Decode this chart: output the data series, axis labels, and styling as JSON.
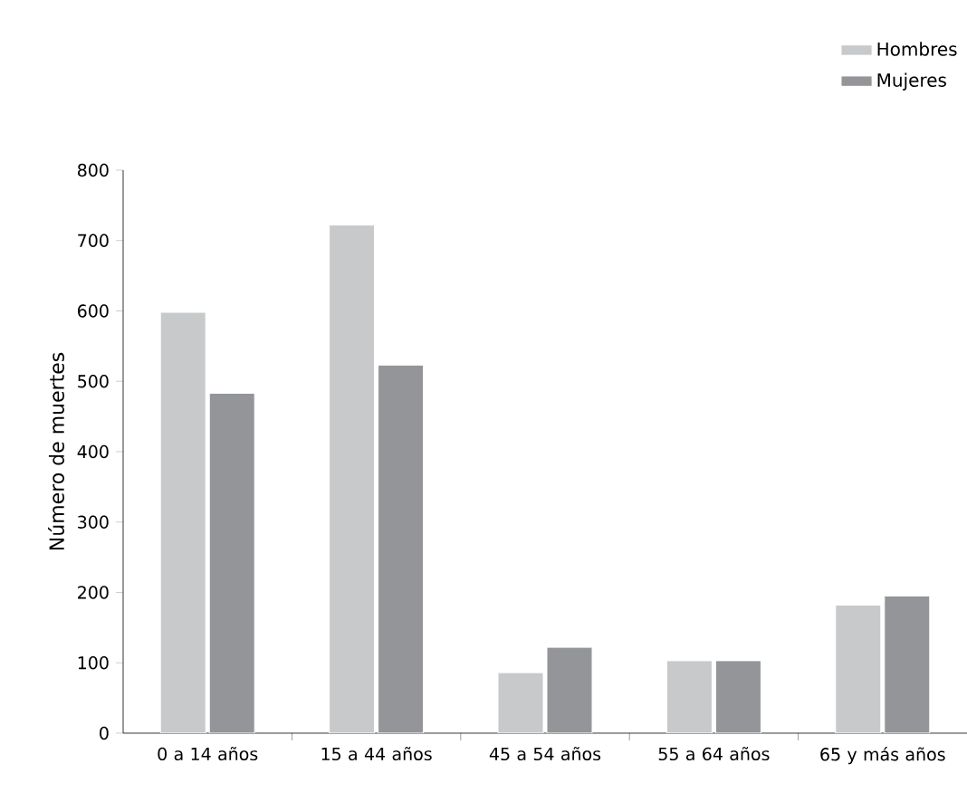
{
  "chart_data": {
    "type": "bar",
    "ylabel": "Número de muertes",
    "categories": [
      "0 a 14 años",
      "15 a 44 años",
      "45 a 54 años",
      "55 a 64 años",
      "65 y más años"
    ],
    "series": [
      {
        "name": "Hombres",
        "color": "#c8c9cb",
        "values": [
          598,
          722,
          86,
          103,
          182
        ]
      },
      {
        "name": "Mujeres",
        "color": "#939598",
        "values": [
          483,
          523,
          122,
          103,
          195
        ]
      }
    ],
    "ylim": [
      0,
      800
    ],
    "yticks": [
      0,
      100,
      200,
      300,
      400,
      500,
      600,
      700,
      800
    ],
    "legend": "top right",
    "grid": false
  }
}
